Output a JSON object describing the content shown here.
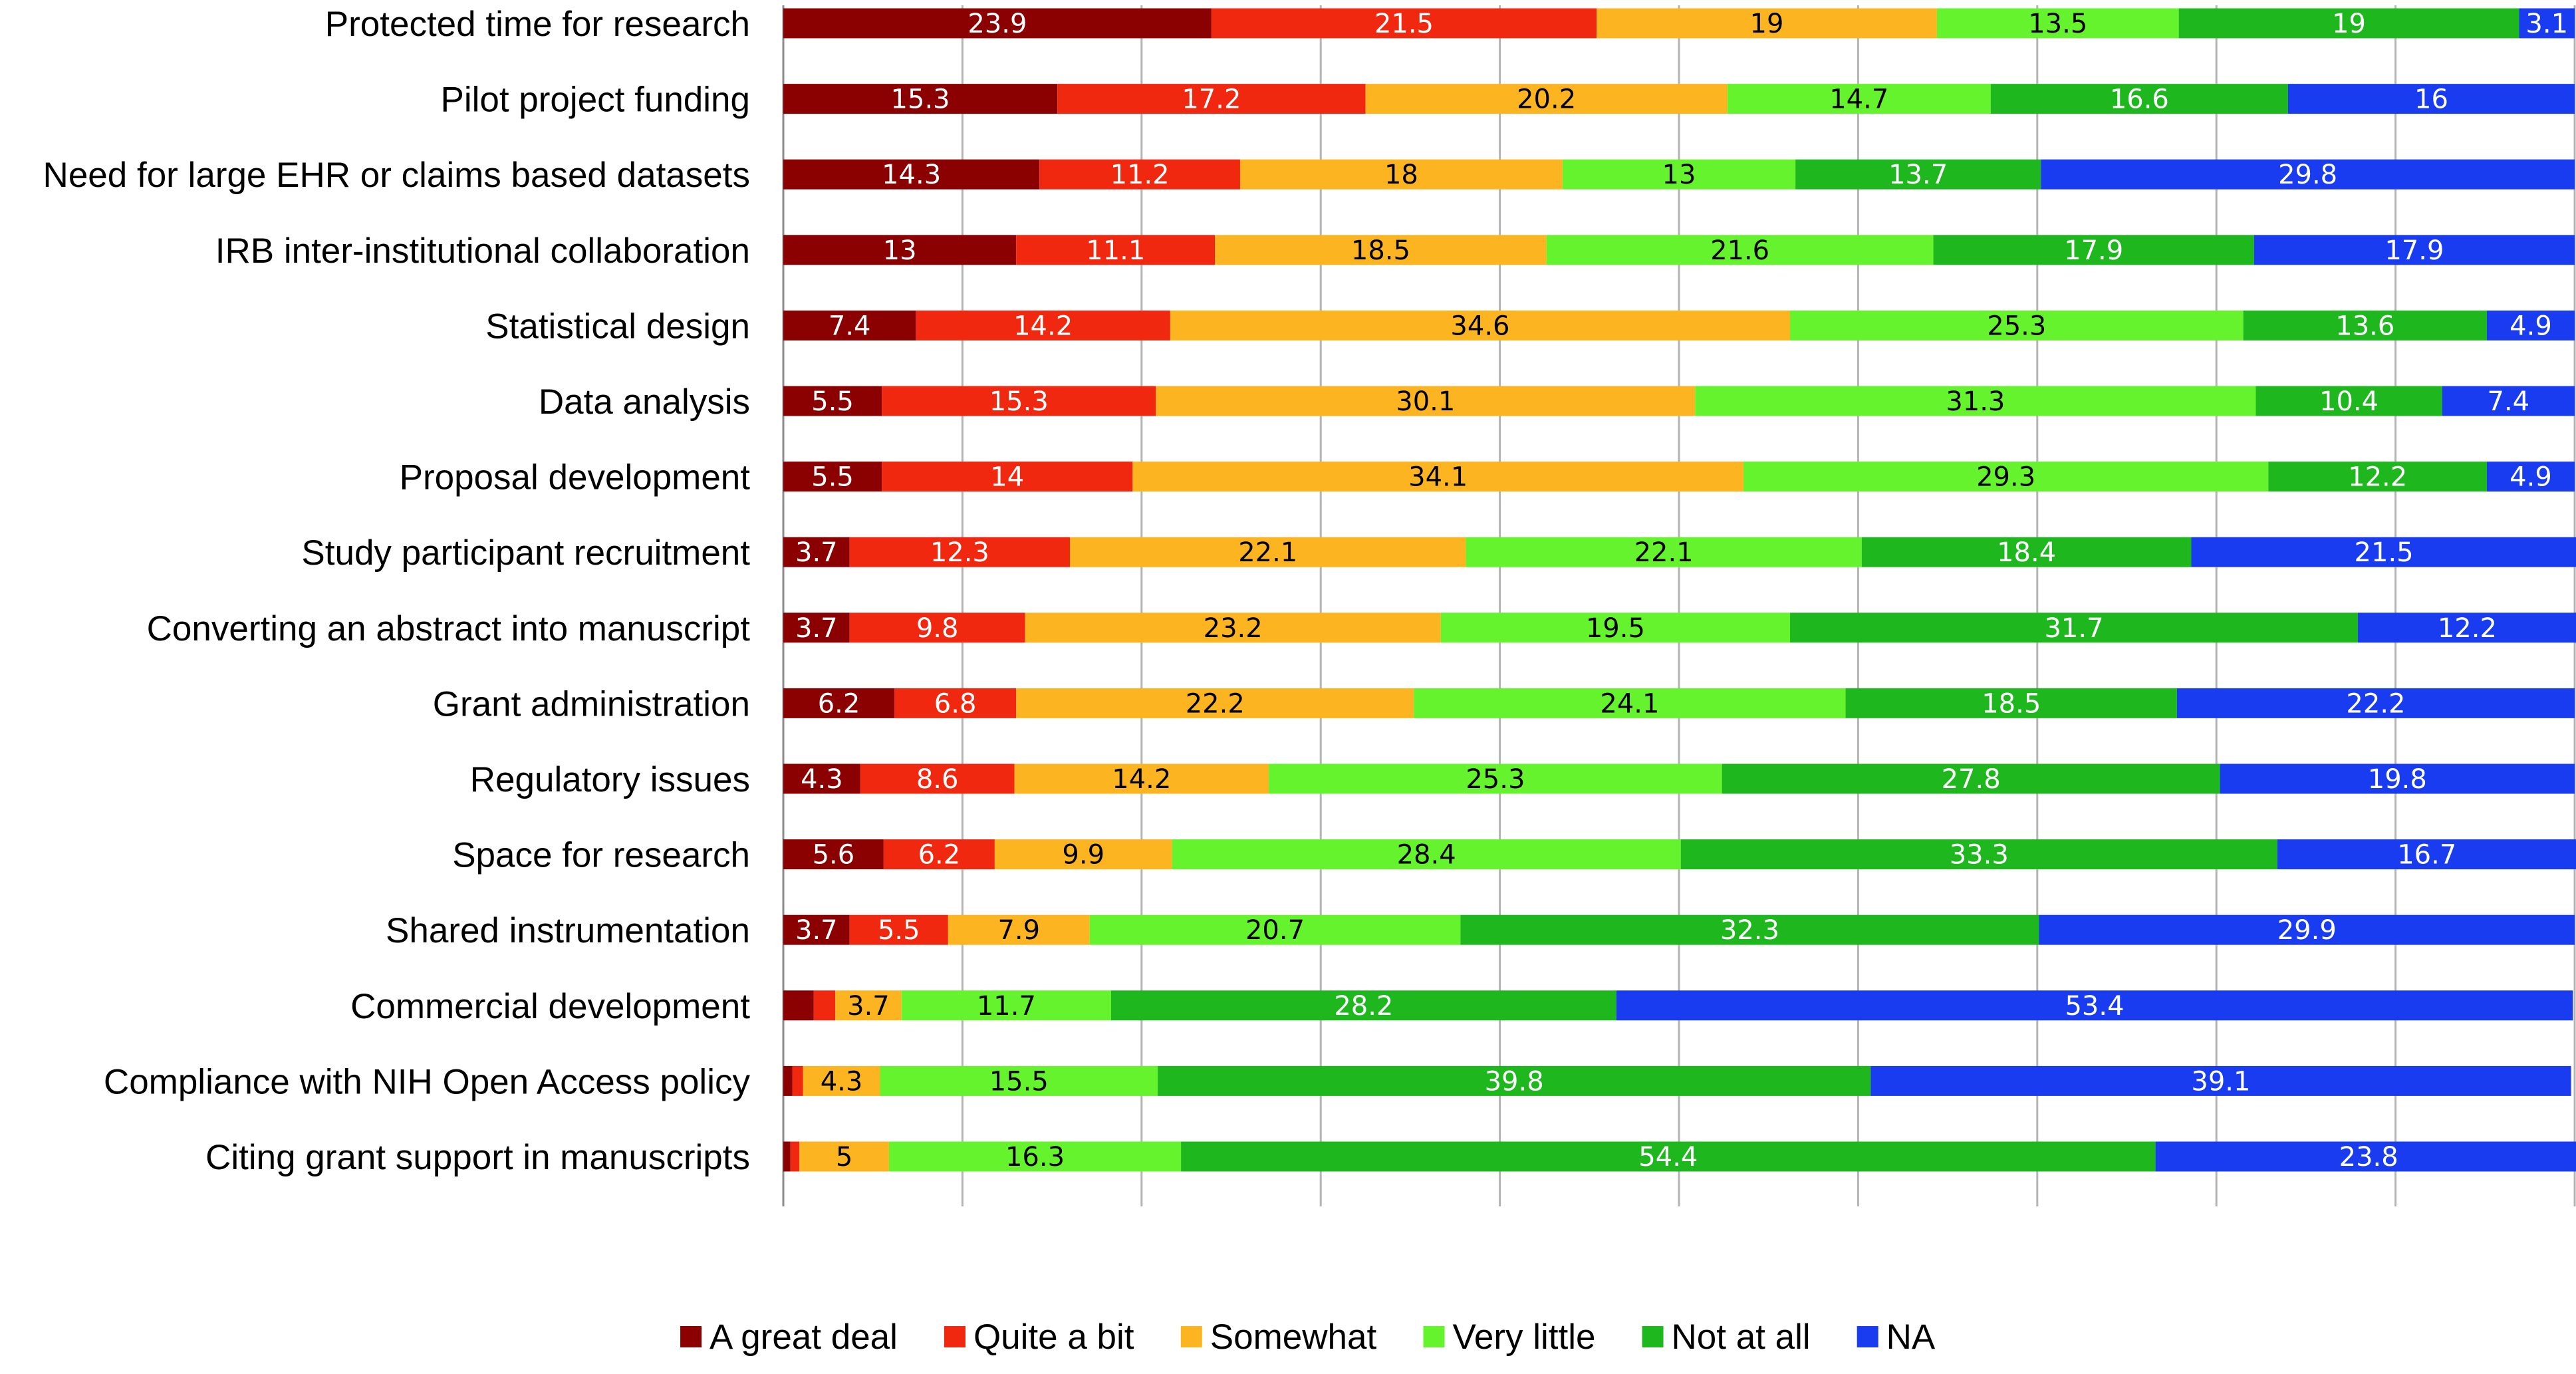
{
  "chart_data": {
    "type": "bar",
    "orientation": "horizontal",
    "stacked": true,
    "normalized_percent": true,
    "title": "",
    "xlabel": "",
    "ylabel": "",
    "xlim": [
      0,
      100
    ],
    "grid": true,
    "legend_position": "bottom",
    "categories": [
      "Protected time for research",
      "Pilot project funding",
      "Need for large EHR or claims based datasets",
      "IRB inter-institutional collaboration",
      "Statistical design",
      "Data analysis",
      "Proposal development",
      "Study participant recruitment",
      "Converting an abstract into manuscript",
      "Grant administration",
      "Regulatory issues",
      "Space for research",
      "Shared instrumentation",
      "Commercial development",
      "Compliance with NIH Open Access policy",
      "Citing grant support in manuscripts"
    ],
    "series": [
      {
        "name": "A great deal",
        "color": "#8b0000",
        "label_color": "#ffffff",
        "values": [
          23.9,
          15.3,
          14.3,
          13,
          7.4,
          5.5,
          5.5,
          3.7,
          3.7,
          6.2,
          4.3,
          5.6,
          3.7,
          1.7,
          0.5,
          0.4
        ],
        "labels": [
          "23.9",
          "15.3",
          "14.3",
          "13",
          "7.4",
          "5.5",
          "5.5",
          "3.7",
          "3.7",
          "6.2",
          "4.3",
          "5.6",
          "3.7",
          "",
          "",
          ""
        ]
      },
      {
        "name": "Quite a bit",
        "color": "#f02810",
        "label_color": "#ffffff",
        "values": [
          21.5,
          17.2,
          11.2,
          11.1,
          14.2,
          15.3,
          14,
          12.3,
          9.8,
          6.8,
          8.6,
          6.2,
          5.5,
          1.2,
          0.6,
          0.5
        ],
        "labels": [
          "21.5",
          "17.2",
          "11.2",
          "11.1",
          "14.2",
          "15.3",
          "14",
          "12.3",
          "9.8",
          "6.8",
          "8.6",
          "6.2",
          "5.5",
          "",
          "",
          ""
        ]
      },
      {
        "name": "Somewhat",
        "color": "#fcb520",
        "label_color": "#000000",
        "values": [
          19,
          20.2,
          18,
          18.5,
          34.6,
          30.1,
          34.1,
          22.1,
          23.2,
          22.2,
          14.2,
          9.9,
          7.9,
          3.7,
          4.3,
          5
        ],
        "labels": [
          "19",
          "20.2",
          "18",
          "18.5",
          "34.6",
          "30.1",
          "34.1",
          "22.1",
          "23.2",
          "22.2",
          "14.2",
          "9.9",
          "7.9",
          "3.7",
          "4.3",
          "5"
        ]
      },
      {
        "name": "Very little",
        "color": "#64f32c",
        "label_color": "#000000",
        "values": [
          13.5,
          14.7,
          13,
          21.6,
          25.3,
          31.3,
          29.3,
          22.1,
          19.5,
          24.1,
          25.3,
          28.4,
          20.7,
          11.7,
          15.5,
          16.3
        ],
        "labels": [
          "13.5",
          "14.7",
          "13",
          "21.6",
          "25.3",
          "31.3",
          "29.3",
          "22.1",
          "19.5",
          "24.1",
          "25.3",
          "28.4",
          "20.7",
          "11.7",
          "15.5",
          "16.3"
        ]
      },
      {
        "name": "Not at all",
        "color": "#1eb81e",
        "label_color": "#ffffff",
        "values": [
          19,
          16.6,
          13.7,
          17.9,
          13.6,
          10.4,
          12.2,
          18.4,
          31.7,
          18.5,
          27.8,
          33.3,
          32.3,
          28.2,
          39.8,
          54.4
        ],
        "labels": [
          "19",
          "16.6",
          "13.7",
          "17.9",
          "13.6",
          "10.4",
          "12.2",
          "18.4",
          "31.7",
          "18.5",
          "27.8",
          "33.3",
          "32.3",
          "28.2",
          "39.8",
          "54.4"
        ]
      },
      {
        "name": "NA",
        "color": "#1a3cf0",
        "label_color": "#ffffff",
        "values": [
          3.1,
          16,
          29.8,
          17.9,
          4.9,
          7.4,
          4.9,
          21.5,
          12.2,
          22.2,
          19.8,
          16.7,
          29.9,
          53.4,
          39.1,
          23.8
        ],
        "labels": [
          "3.1",
          "16",
          "29.8",
          "17.9",
          "4.9",
          "7.4",
          "4.9",
          "21.5",
          "12.2",
          "22.2",
          "19.8",
          "16.7",
          "29.9",
          "53.4",
          "39.1",
          "23.8"
        ]
      }
    ]
  }
}
